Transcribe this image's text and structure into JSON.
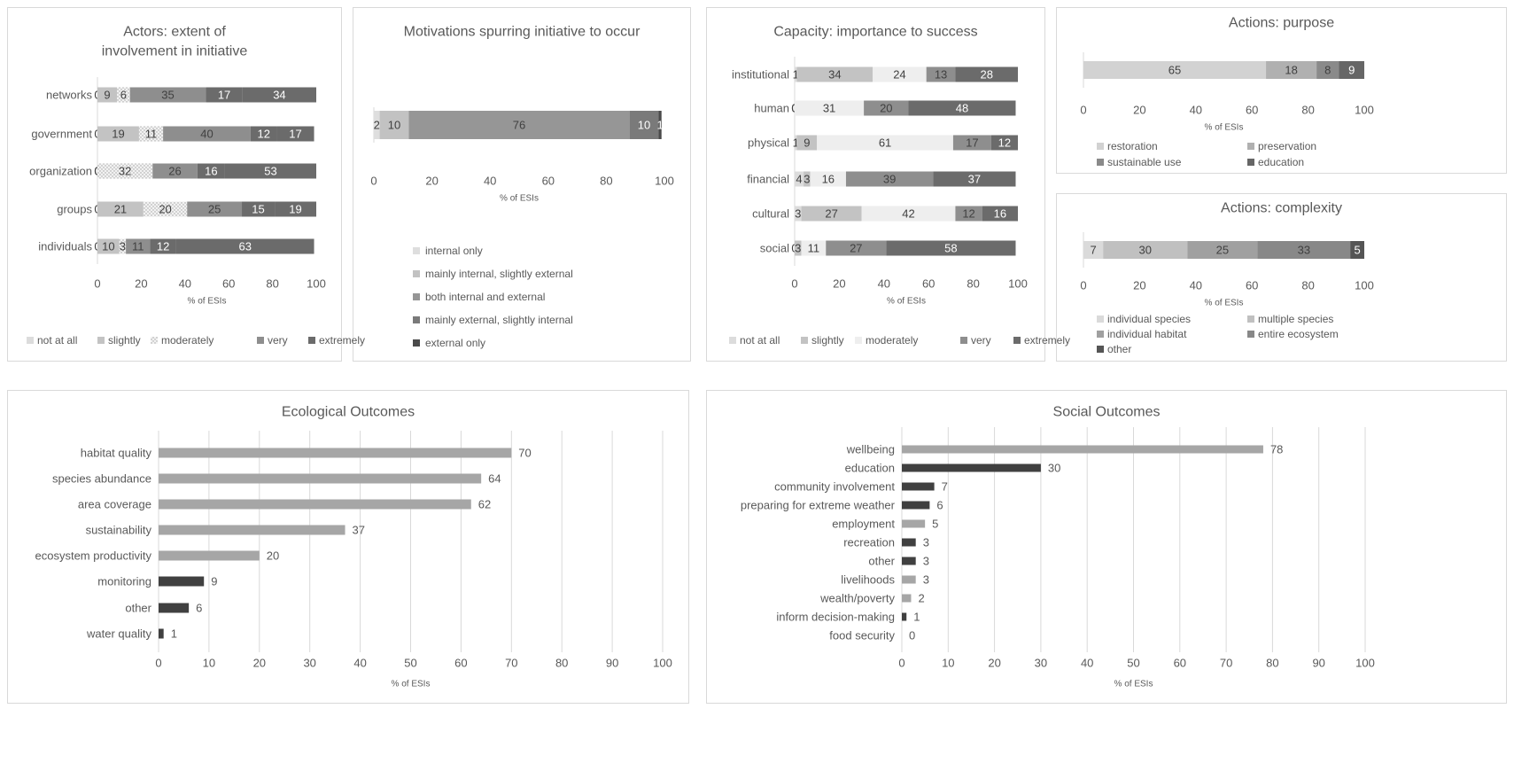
{
  "chart_data": [
    {
      "id": "actors",
      "type": "stacked-bar-horizontal",
      "title": "Actors: extent of involvement in initiative",
      "xlabel": "% of ESIs",
      "xlim": [
        0,
        100
      ],
      "xticks": [
        "0",
        "20",
        "40",
        "60",
        "80",
        "100"
      ],
      "categories": [
        "networks",
        "government",
        "organization",
        "groups",
        "individuals"
      ],
      "series": [
        {
          "name": "not at all",
          "color": "#dcdcdc",
          "pattern": false,
          "values": [
            0,
            0,
            0,
            0,
            0
          ]
        },
        {
          "name": "slightly",
          "color": "#c3c3c3",
          "pattern": false,
          "values": [
            9,
            19,
            0,
            21,
            10
          ]
        },
        {
          "name": "moderately",
          "color": "#eeeeee",
          "pattern": true,
          "values": [
            6,
            11,
            32,
            20,
            3
          ]
        },
        {
          "name": "very",
          "color": "#8e8e8e",
          "pattern": false,
          "values": [
            35,
            40,
            26,
            25,
            11
          ]
        },
        {
          "name": "extremely",
          "color": "#6b6b6b",
          "pattern": false,
          "values": [
            17,
            12,
            16,
            15,
            12
          ]
        }
      ],
      "extra_values": [
        34,
        17,
        53,
        19,
        63
      ],
      "legend_position": "bottom"
    },
    {
      "id": "motivations",
      "type": "stacked-bar-horizontal",
      "title": "Motivations spurring initiative to occur",
      "xlabel": "% of ESIs",
      "xlim": [
        0,
        100
      ],
      "xticks": [
        "0",
        "20",
        "40",
        "60",
        "80",
        "100"
      ],
      "categories": [
        ""
      ],
      "series": [
        {
          "name": "internal only",
          "color": "#dedede",
          "values": [
            2
          ]
        },
        {
          "name": "mainly internal, slightly external",
          "color": "#c2c2c2",
          "values": [
            10
          ]
        },
        {
          "name": "both internal and external",
          "color": "#969696",
          "values": [
            76
          ]
        },
        {
          "name": "mainly external, slightly internal",
          "color": "#7a7a7a",
          "values": [
            10
          ]
        },
        {
          "name": "external only",
          "color": "#4a4a4a",
          "values": [
            1
          ]
        }
      ],
      "legend_position": "bottom"
    },
    {
      "id": "capacity",
      "type": "stacked-bar-horizontal",
      "title": "Capacity: importance to success",
      "xlabel": "% of ESIs",
      "xlim": [
        0,
        100
      ],
      "xticks": [
        "0",
        "20",
        "40",
        "60",
        "80",
        "100"
      ],
      "categories": [
        "institutional",
        "human",
        "physical",
        "financial",
        "cultural",
        "social"
      ],
      "series": [
        {
          "name": "not at all",
          "color": "#dcdcdc",
          "values": [
            1,
            0,
            1,
            4,
            3,
            0
          ]
        },
        {
          "name": "slightly",
          "color": "#c3c3c3",
          "values": [
            34,
            0,
            9,
            3,
            27,
            3
          ]
        },
        {
          "name": "moderately",
          "color": "#eeeeee",
          "values": [
            24,
            31,
            61,
            16,
            42,
            11
          ]
        },
        {
          "name": "very",
          "color": "#8e8e8e",
          "values": [
            13,
            20,
            17,
            39,
            12,
            27
          ]
        },
        {
          "name": "extremely",
          "color": "#6b6b6b",
          "values": [
            28,
            48,
            12,
            37,
            16,
            58
          ]
        }
      ],
      "legend_position": "bottom"
    },
    {
      "id": "purpose",
      "type": "stacked-bar-horizontal",
      "title": "Actions: purpose",
      "xlabel": "% of ESIs",
      "xlim": [
        0,
        100
      ],
      "xticks": [
        "0",
        "20",
        "40",
        "60",
        "80",
        "100"
      ],
      "categories": [
        ""
      ],
      "series": [
        {
          "name": "restoration",
          "color": "#d2d2d2",
          "values": [
            65
          ]
        },
        {
          "name": "preservation",
          "color": "#b0b0b0",
          "values": [
            18
          ]
        },
        {
          "name": "sustainable use",
          "color": "#8a8a8a",
          "values": [
            8
          ]
        },
        {
          "name": "education",
          "color": "#666666",
          "values": [
            9
          ]
        }
      ],
      "legend_position": "bottom"
    },
    {
      "id": "complexity",
      "type": "stacked-bar-horizontal",
      "title": "Actions: complexity",
      "xlabel": "% of ESIs",
      "xlim": [
        0,
        100
      ],
      "xticks": [
        "0",
        "20",
        "40",
        "60",
        "80",
        "100"
      ],
      "categories": [
        ""
      ],
      "series": [
        {
          "name": "individual species",
          "color": "#dadada",
          "values": [
            7
          ]
        },
        {
          "name": "multiple species",
          "color": "#c0c0c0",
          "values": [
            30
          ]
        },
        {
          "name": "individual habitat",
          "color": "#a0a0a0",
          "values": [
            25
          ]
        },
        {
          "name": "entire ecosystem",
          "color": "#888888",
          "values": [
            33
          ]
        },
        {
          "name": "other",
          "color": "#555555",
          "values": [
            5
          ]
        }
      ],
      "legend_position": "bottom"
    },
    {
      "id": "ecological",
      "type": "bar-horizontal",
      "title": "Ecological Outcomes",
      "xlabel": "% of ESIs",
      "xlim": [
        0,
        100
      ],
      "xticks": [
        "0",
        "10",
        "20",
        "30",
        "40",
        "50",
        "60",
        "70",
        "80",
        "90",
        "100"
      ],
      "categories": [
        "habitat quality",
        "species abundance",
        "area coverage",
        "sustainability",
        "ecosystem productivity",
        "monitoring",
        "other",
        "water quality"
      ],
      "values": [
        70,
        64,
        62,
        37,
        20,
        9,
        6,
        1
      ],
      "colors": [
        "#a6a6a6",
        "#a6a6a6",
        "#a6a6a6",
        "#a6a6a6",
        "#a6a6a6",
        "#404040",
        "#404040",
        "#404040"
      ]
    },
    {
      "id": "social",
      "type": "bar-horizontal",
      "title": "Social Outcomes",
      "xlabel": "% of ESIs",
      "xlim": [
        0,
        100
      ],
      "xticks": [
        "0",
        "10",
        "20",
        "30",
        "40",
        "50",
        "60",
        "70",
        "80",
        "90",
        "100"
      ],
      "categories": [
        "wellbeing",
        "education",
        "community involvement",
        "preparing for extreme weather",
        "employment",
        "recreation",
        "other",
        "livelihoods",
        "wealth/poverty",
        "inform decision-making",
        "food security"
      ],
      "values": [
        78,
        30,
        7,
        6,
        5,
        3,
        3,
        3,
        2,
        1,
        0
      ],
      "colors": [
        "#a6a6a6",
        "#404040",
        "#404040",
        "#404040",
        "#a6a6a6",
        "#404040",
        "#404040",
        "#a6a6a6",
        "#a6a6a6",
        "#404040",
        "#404040"
      ]
    }
  ]
}
